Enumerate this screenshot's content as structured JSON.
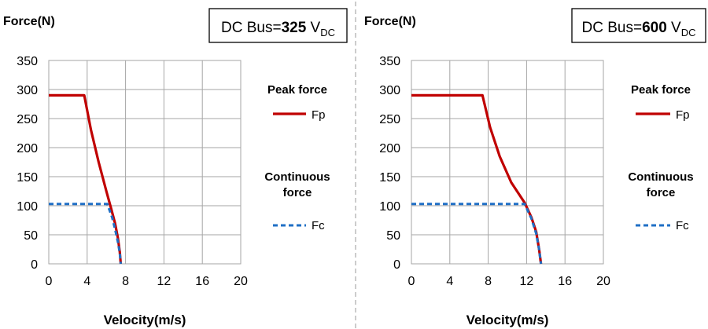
{
  "colors": {
    "peak": "#c00000",
    "continuous": "#1f6fc5",
    "grid": "#a6a6a6",
    "divider": "#9a9a9a"
  },
  "chart_data": [
    {
      "type": "line",
      "title": "",
      "ylabel": "Force(N)",
      "xlabel": "Velocity(m/s)",
      "xlim": [
        0,
        20
      ],
      "ylim": [
        0,
        350
      ],
      "xticks": [
        "0",
        "4",
        "8",
        "12",
        "16",
        "20"
      ],
      "yticks": [
        "0",
        "50",
        "100",
        "150",
        "200",
        "250",
        "300",
        "350"
      ],
      "grid": true,
      "legend_placement": "right",
      "bus_box": {
        "prefix": "DC Bus=",
        "value": "325",
        "unit": " V",
        "unit_sub": "DC"
      },
      "legend_titles": {
        "peak": "Peak force",
        "continuous_line1": "Continuous",
        "continuous_line2": "force"
      },
      "series": [
        {
          "name": "Fp",
          "style": "solid",
          "x": [
            0,
            3.7,
            4.4,
            5.2,
            6.0,
            6.5,
            6.9,
            7.2,
            7.4,
            7.5
          ],
          "y": [
            290,
            290,
            230,
            175,
            125,
            95,
            70,
            45,
            20,
            0
          ]
        },
        {
          "name": "Fc",
          "style": "dashed",
          "x": [
            0,
            6.1,
            6.6,
            6.9,
            7.2,
            7.4,
            7.5
          ],
          "y": [
            103,
            103,
            80,
            60,
            38,
            18,
            0
          ]
        }
      ]
    },
    {
      "type": "line",
      "title": "",
      "ylabel": "Force(N)",
      "xlabel": "Velocity(m/s)",
      "xlim": [
        0,
        20
      ],
      "ylim": [
        0,
        350
      ],
      "xticks": [
        "0",
        "4",
        "8",
        "12",
        "16",
        "20"
      ],
      "yticks": [
        "0",
        "50",
        "100",
        "150",
        "200",
        "250",
        "300",
        "350"
      ],
      "grid": true,
      "legend_placement": "right",
      "bus_box": {
        "prefix": "DC Bus=",
        "value": "600",
        "unit": " V",
        "unit_sub": "DC"
      },
      "legend_titles": {
        "peak": "Peak force",
        "continuous_line1": "Continuous",
        "continuous_line2": "force"
      },
      "series": [
        {
          "name": "Fp",
          "style": "solid",
          "x": [
            0,
            7.4,
            8.2,
            9.2,
            10.4,
            11.8,
            12.5,
            13.0,
            13.3,
            13.5
          ],
          "y": [
            290,
            290,
            235,
            185,
            140,
            105,
            80,
            55,
            25,
            0
          ]
        },
        {
          "name": "Fc",
          "style": "dashed",
          "x": [
            0,
            11.8,
            12.5,
            13.0,
            13.3,
            13.5
          ],
          "y": [
            103,
            103,
            78,
            52,
            25,
            0
          ]
        }
      ]
    }
  ]
}
